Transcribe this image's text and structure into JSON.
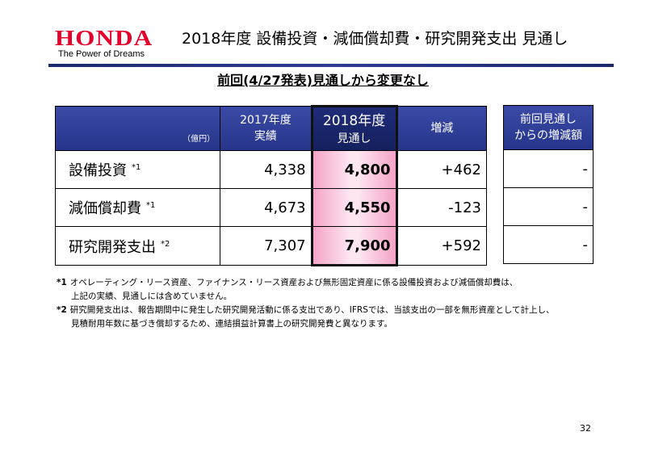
{
  "header": {
    "logo": "HONDA",
    "tagline": "The Power of Dreams",
    "title": "2018年度 設備投資・減価償却費・研究開発支出 見通し"
  },
  "subtitle": "前回(4/27発表)見通しから変更なし",
  "table": {
    "unit": "（億円）",
    "columns": [
      [
        "2017年度",
        "実績"
      ],
      [
        "2018年度",
        "見通し"
      ],
      [
        "増減"
      ]
    ],
    "rows": [
      {
        "label": "設備投資",
        "note": "*1",
        "cells": [
          "4,338",
          "4,800",
          "+462"
        ]
      },
      {
        "label": "減価償却費",
        "note": "*1",
        "cells": [
          "4,673",
          "4,550",
          "-123"
        ]
      },
      {
        "label": "研究開発支出",
        "note": "*2",
        "cells": [
          "7,307",
          "7,900",
          "+592"
        ]
      }
    ]
  },
  "side_table": {
    "header": [
      "前回見通し",
      "からの増減額"
    ],
    "cells": [
      "-",
      "-",
      "-"
    ]
  },
  "footnotes": [
    {
      "marker": "*1",
      "lines": [
        "オペレーティング・リース資産、ファイナンス・リース資産および無形固定資産に係る設備投資および減価償却費は、",
        "上記の実績、見通しには含めていません。"
      ]
    },
    {
      "marker": "*2",
      "lines": [
        "研究開発支出は、報告期間中に発生した研究開発活動に係る支出であり、IFRSでは、当該支出の一部を無形資産として計上し、",
        "見積耐用年数に基づき償却するため、連結損益計算書上の研究開発費と異なります。"
      ]
    }
  ],
  "page_number": "32"
}
